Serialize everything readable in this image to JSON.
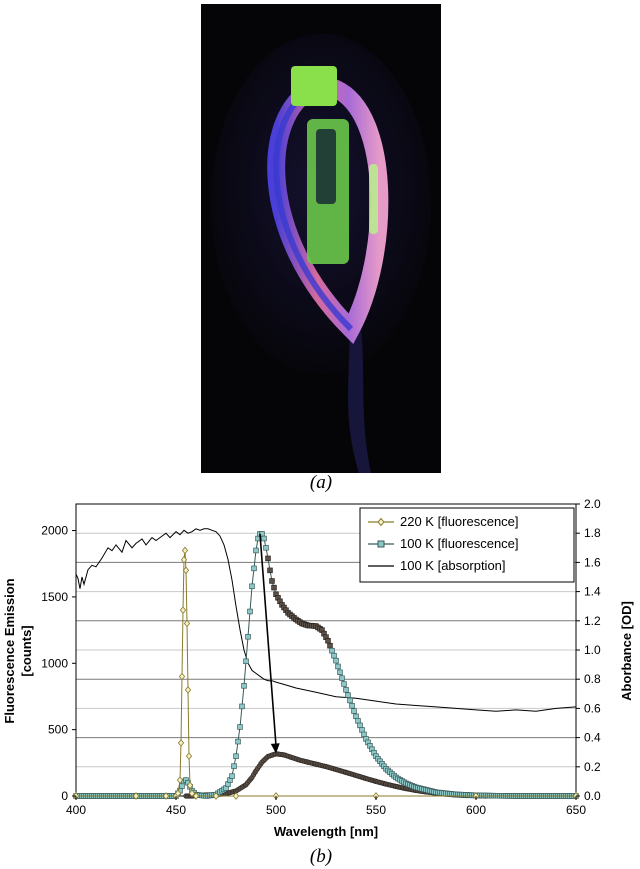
{
  "panels": {
    "a_label": "(a)",
    "b_label": "(b)"
  },
  "photo": {
    "colors": {
      "background": "#050508",
      "shell_blue": "#4a3fd6",
      "shell_pink": "#d66a9e",
      "crystal_green": "#7cd64a"
    }
  },
  "chart_data": {
    "type": "line",
    "title": "",
    "xlabel": "Wavelength [nm]",
    "ylabel": "Fluorescence Emission [counts]",
    "ylabel_lines": [
      "Fluorescence Emission",
      "[counts]"
    ],
    "y2label": "Aborbance [OD]",
    "xlim": [
      400,
      650
    ],
    "ylim": [
      0,
      2200
    ],
    "y2lim": [
      0,
      2.0
    ],
    "xticks": [
      400,
      450,
      500,
      550,
      600,
      650
    ],
    "xtick_labels": [
      "400",
      "450",
      "500",
      "550",
      "600",
      "650"
    ],
    "yticks": [
      0,
      500,
      1000,
      1500,
      2000
    ],
    "ytick_labels": [
      "0",
      "500",
      "1000",
      "1500",
      "2000"
    ],
    "y2ticks": [
      0,
      0.2,
      0.4,
      0.6,
      0.8,
      1.0,
      1.2,
      1.4,
      1.6,
      1.8,
      2.0
    ],
    "y2tick_labels": [
      "0.0",
      "0.2",
      "0.4",
      "0.6",
      "0.8",
      "1.0",
      "1.2",
      "1.4",
      "1.6",
      "1.8",
      "2.0"
    ],
    "grid": "horizontal",
    "legend_position": "top-right",
    "series": [
      {
        "name": "220 K [fluorescence]",
        "axis": "left",
        "marker": "diamond",
        "color": "#8a7a2a",
        "marker_fill": "#f5f0c8",
        "x": [
          400,
          430,
          445,
          450,
          451,
          452,
          452.5,
          453,
          453.5,
          454,
          454.5,
          455,
          455.5,
          456,
          456.5,
          457,
          458,
          460,
          470,
          480,
          500,
          550,
          600,
          650
        ],
        "y": [
          0,
          0,
          0,
          0,
          20,
          120,
          400,
          900,
          1400,
          1780,
          1850,
          1700,
          1300,
          800,
          300,
          80,
          20,
          0,
          0,
          0,
          0,
          0,
          0,
          0
        ]
      },
      {
        "name": "100 K [fluorescence]",
        "axis": "left",
        "marker": "square",
        "color": "#3a5a5a",
        "marker_fill": "#8cc8c8",
        "x": [
          400,
          440,
          450,
          452,
          454,
          455,
          456,
          458,
          460,
          465,
          470,
          475,
          478,
          480,
          482,
          484,
          486,
          488,
          490,
          491,
          492,
          493,
          494,
          495,
          496,
          497,
          498,
          500,
          503,
          506,
          510,
          513,
          516,
          520,
          523,
          526,
          530,
          535,
          540,
          545,
          550,
          555,
          560,
          565,
          570,
          580,
          590,
          600,
          610,
          620,
          630,
          640,
          650
        ],
        "y": [
          0,
          0,
          0,
          40,
          110,
          120,
          100,
          40,
          10,
          0,
          10,
          60,
          150,
          300,
          520,
          830,
          1200,
          1580,
          1850,
          1940,
          1975,
          1975,
          1940,
          1870,
          1790,
          1700,
          1620,
          1520,
          1440,
          1380,
          1330,
          1300,
          1285,
          1280,
          1250,
          1170,
          1020,
          800,
          600,
          430,
          300,
          205,
          140,
          95,
          65,
          28,
          12,
          5,
          2,
          0,
          0,
          0,
          0
        ]
      },
      {
        "name": "100 K [absorption]",
        "axis": "right",
        "marker": "none",
        "color": "#000000",
        "x": [
          400,
          401,
          402,
          403,
          404,
          406,
          408,
          410,
          413,
          416,
          418,
          420,
          423,
          425,
          428,
          430,
          433,
          435,
          438,
          440,
          443,
          445,
          447,
          450,
          452,
          454,
          456,
          458,
          460,
          462,
          464,
          466,
          468,
          470,
          472,
          474,
          476,
          478,
          480,
          482,
          484,
          486,
          488,
          490,
          492,
          494,
          496,
          498,
          500,
          505,
          510,
          520,
          530,
          540,
          550,
          560,
          570,
          580,
          590,
          600,
          610,
          620,
          630,
          640,
          650
        ],
        "y": [
          1.52,
          1.49,
          1.42,
          1.5,
          1.45,
          1.55,
          1.58,
          1.57,
          1.63,
          1.7,
          1.68,
          1.72,
          1.67,
          1.75,
          1.7,
          1.73,
          1.76,
          1.72,
          1.77,
          1.75,
          1.78,
          1.8,
          1.77,
          1.81,
          1.79,
          1.82,
          1.8,
          1.81,
          1.83,
          1.82,
          1.83,
          1.83,
          1.82,
          1.81,
          1.78,
          1.72,
          1.62,
          1.48,
          1.3,
          1.14,
          1.0,
          0.91,
          0.86,
          0.84,
          0.82,
          0.8,
          0.79,
          0.79,
          0.78,
          0.76,
          0.74,
          0.71,
          0.68,
          0.67,
          0.65,
          0.63,
          0.62,
          0.61,
          0.6,
          0.59,
          0.58,
          0.59,
          0.58,
          0.6,
          0.61
        ]
      }
    ],
    "annotations": [
      {
        "type": "arrow",
        "from": [
          492,
          1975
        ],
        "to": [
          500,
          320
        ]
      }
    ],
    "lower_emission": {
      "x": [
        455,
        458,
        460,
        462,
        465,
        470,
        475,
        480,
        485,
        488,
        490,
        493,
        496,
        500,
        504,
        508,
        512,
        516,
        520,
        525,
        530,
        535,
        540,
        545,
        550,
        555,
        560,
        565,
        570,
        575,
        580,
        585,
        590,
        595,
        600,
        605
      ],
      "y": [
        0,
        0,
        2,
        5,
        8,
        10,
        18,
        38,
        85,
        140,
        190,
        255,
        298,
        318,
        310,
        290,
        270,
        255,
        240,
        222,
        200,
        178,
        155,
        132,
        110,
        90,
        72,
        56,
        42,
        31,
        22,
        14,
        8,
        4,
        2,
        0
      ]
    }
  }
}
